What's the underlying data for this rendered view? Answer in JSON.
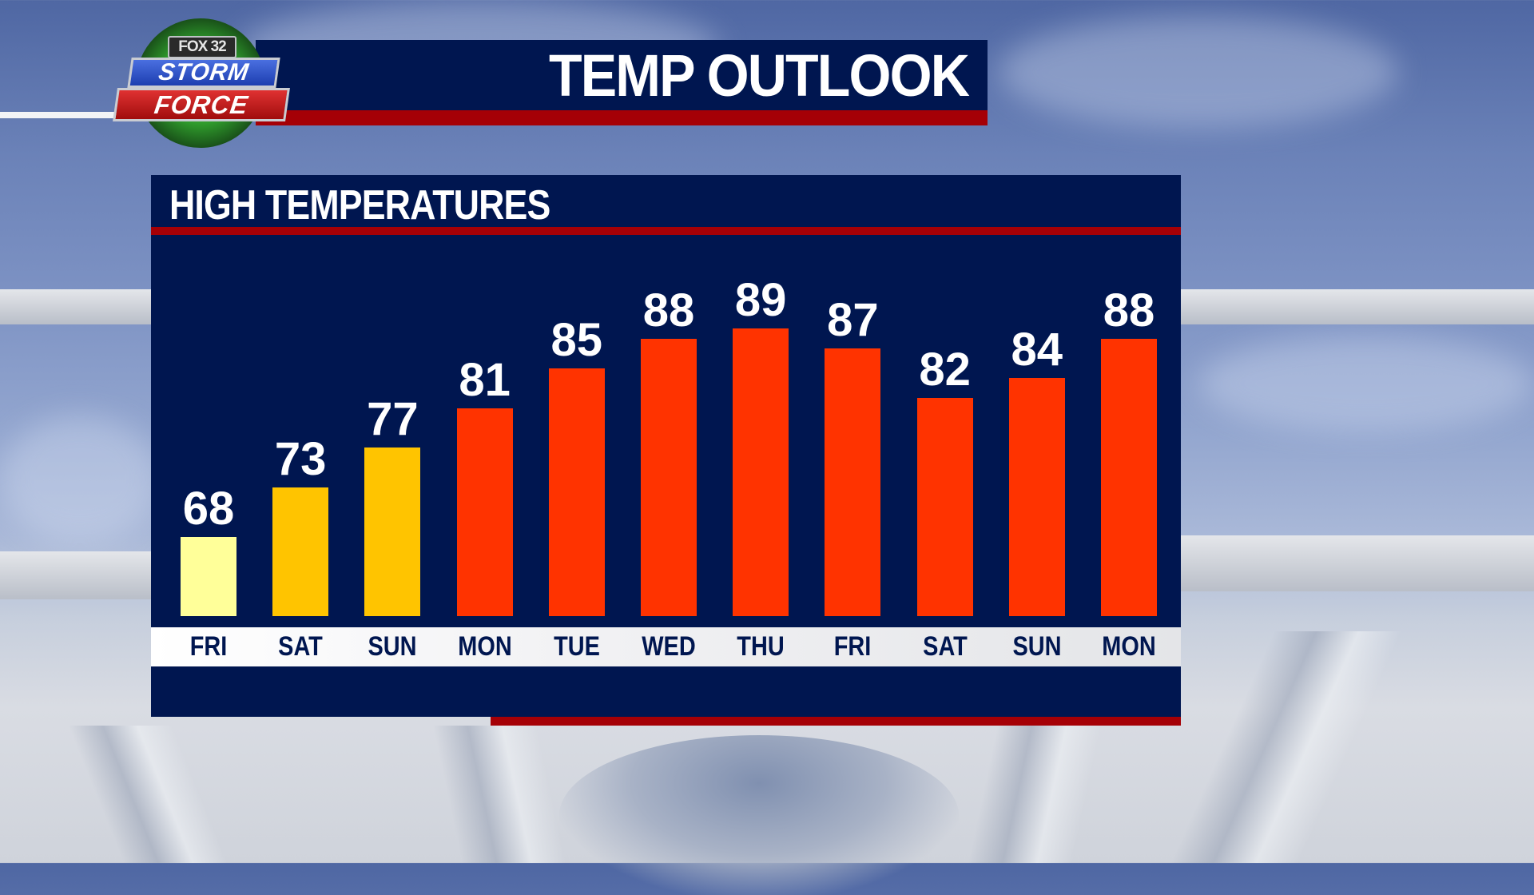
{
  "branding": {
    "station": "FOX 32",
    "line1": "STORM",
    "line2": "FORCE"
  },
  "title": "TEMP OUTLOOK",
  "panel": {
    "title": "HIGH TEMPERATURES"
  },
  "colors": {
    "navy": "#001650",
    "red_accent": "#a50006",
    "bar_cool": "#ffff99",
    "bar_warm": "#ffc400",
    "bar_hot": "#ff3300"
  },
  "chart_data": {
    "type": "bar",
    "title": "HIGH TEMPERATURES",
    "categories": [
      "FRI",
      "SAT",
      "SUN",
      "MON",
      "TUE",
      "WED",
      "THU",
      "FRI",
      "SAT",
      "SUN",
      "MON"
    ],
    "values": [
      68,
      73,
      77,
      81,
      85,
      88,
      89,
      87,
      82,
      84,
      88
    ],
    "bar_colors": [
      "#ffff99",
      "#ffc400",
      "#ffc400",
      "#ff3300",
      "#ff3300",
      "#ff3300",
      "#ff3300",
      "#ff3300",
      "#ff3300",
      "#ff3300",
      "#ff3300"
    ],
    "xlabel": "",
    "ylabel": "",
    "ylim": [
      60,
      95
    ],
    "grid": false,
    "legend": "none",
    "data_labels": true
  }
}
